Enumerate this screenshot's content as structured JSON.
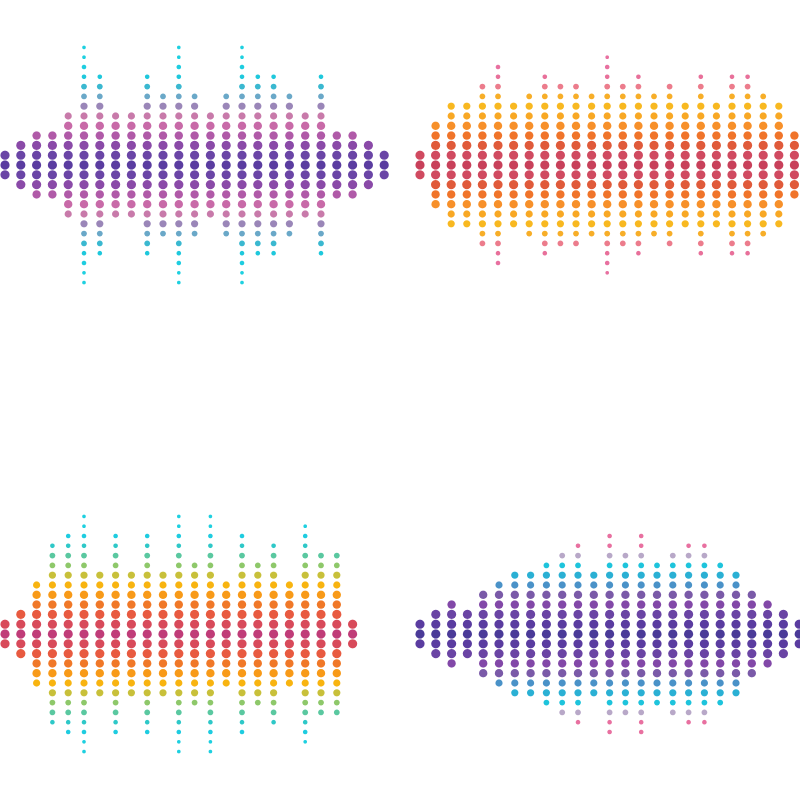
{
  "waveforms": [
    {
      "name": "purple-cyan",
      "columns": 25,
      "levels": [
        1,
        2,
        3,
        3,
        5,
        12,
        9,
        5,
        5,
        9,
        7,
        12,
        7,
        5,
        7,
        12,
        9,
        9,
        7,
        5,
        9,
        3,
        3,
        2,
        1
      ],
      "palette": [
        "#5a3ca0",
        "#6a45a6",
        "#8a4aa8",
        "#b05aa8",
        "#c86aa8",
        "#c87aaa",
        "#9a86b8",
        "#6aa8c8",
        "#3ab8d0",
        "#1ec8dc",
        "#1ecde0",
        "#1ed0e0"
      ]
    },
    {
      "name": "orange-pink",
      "columns": 25,
      "levels": [
        1,
        4,
        6,
        6,
        8,
        10,
        6,
        7,
        9,
        8,
        8,
        7,
        11,
        8,
        9,
        7,
        8,
        6,
        9,
        6,
        9,
        9,
        7,
        6,
        3
      ],
      "palette": [
        "#c8405a",
        "#d04a60",
        "#e05a3a",
        "#f0742a",
        "#f7902a",
        "#f8a824",
        "#f8b820",
        "#f7ae28",
        "#ec7c8c",
        "#e8709a",
        "#e870a0",
        "#e870a0"
      ]
    },
    {
      "name": "rainbow",
      "columns": 23,
      "levels": [
        1,
        2,
        5,
        9,
        10,
        12,
        6,
        10,
        6,
        10,
        6,
        12,
        7,
        12,
        5,
        10,
        7,
        9,
        5,
        11,
        8,
        8,
        1
      ],
      "palette": [
        "#c03c78",
        "#d84a5a",
        "#e85a40",
        "#f07828",
        "#f89a18",
        "#f8b410",
        "#c8c03a",
        "#8ec86a",
        "#5ac8a0",
        "#2ec8c8",
        "#1ecce0",
        "#1ed0e0"
      ]
    },
    {
      "name": "indigo-cyan-pink",
      "columns": 25,
      "levels": [
        1,
        2,
        3,
        2,
        4,
        5,
        6,
        6,
        7,
        8,
        9,
        6,
        10,
        8,
        10,
        7,
        8,
        9,
        9,
        7,
        6,
        4,
        3,
        2,
        1
      ],
      "palette": [
        "#4a3a98",
        "#5a3ca0",
        "#6a44a4",
        "#8248a8",
        "#7a5aa8",
        "#4a92c8",
        "#2ab0d4",
        "#1ec4dc",
        "#b8a8c8",
        "#e870a0",
        "#e870a0",
        "#e870a0"
      ]
    }
  ]
}
